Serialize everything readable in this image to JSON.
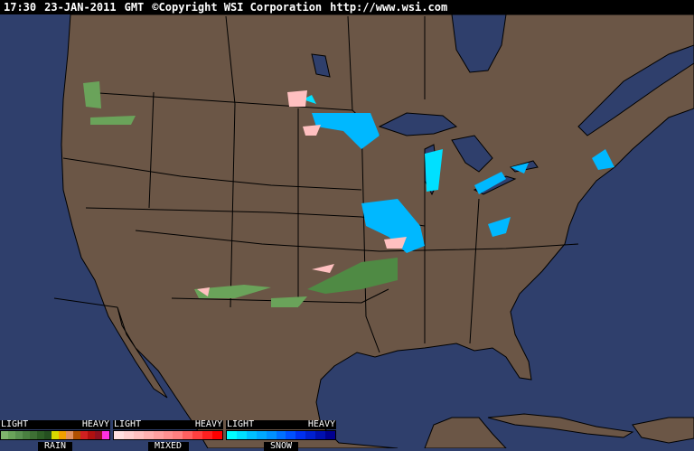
{
  "header": {
    "time": "17:30",
    "date": "23-JAN-2011",
    "zone": "GMT",
    "copyright": "©Copyright WSI Corporation",
    "url": "http://www.wsi.com"
  },
  "colors": {
    "ocean": "#2f3f6c",
    "land": "#6b5646",
    "borders": "#000000"
  },
  "legend": [
    {
      "name": "RAIN",
      "light": "LIGHT",
      "heavy": "HEAVY",
      "colors": [
        "#7fb46c",
        "#6aa35a",
        "#5a9150",
        "#4a8040",
        "#3e7034",
        "#2e5f26",
        "#255020",
        "#d8d800",
        "#f0a000",
        "#e09060",
        "#b05000",
        "#d02020",
        "#b01010",
        "#901020",
        "#ff30e0"
      ]
    },
    {
      "name": "MIXED",
      "light": "LIGHT",
      "heavy": "HEAVY",
      "colors": [
        "#ffe0e0",
        "#ffd0d0",
        "#ffc0c0",
        "#ffb0b0",
        "#ffa0a0",
        "#ff9090",
        "#ff8080",
        "#ff6060",
        "#ff4040",
        "#ff2020",
        "#ff0000"
      ]
    },
    {
      "name": "SNOW",
      "light": "LIGHT",
      "heavy": "HEAVY",
      "colors": [
        "#00ffff",
        "#00e0ff",
        "#00c0ff",
        "#00a8ff",
        "#0090ff",
        "#0070ff",
        "#0050ff",
        "#0030f0",
        "#0020d0",
        "#0010b0",
        "#000090"
      ]
    }
  ]
}
